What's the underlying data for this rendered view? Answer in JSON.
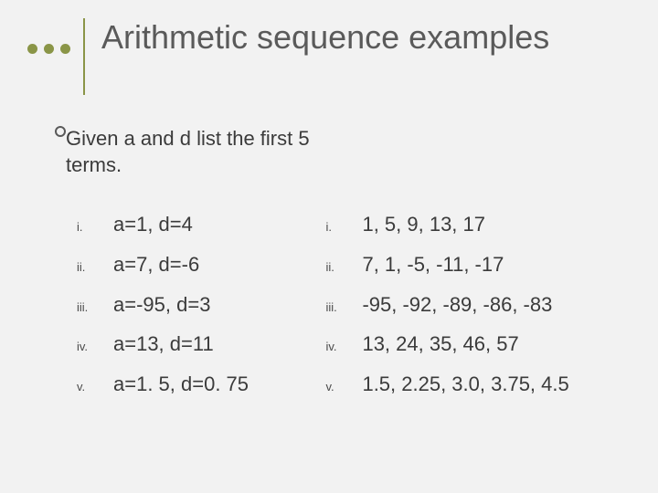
{
  "title": "Arithmetic sequence examples",
  "intro": "Given a and d list the first 5 terms.",
  "colors": {
    "accent": "#8a9547",
    "background": "#f2f2f2",
    "text": "#3b3b3b"
  },
  "left_items": [
    {
      "marker": "i.",
      "text": "a=1,   d=4"
    },
    {
      "marker": "ii.",
      "text": "a=7,   d=-6"
    },
    {
      "marker": "iii.",
      "text": "a=-95,   d=3"
    },
    {
      "marker": "iv.",
      "text": "a=13,   d=11"
    },
    {
      "marker": "v.",
      "text": "a=1. 5,   d=0. 75"
    }
  ],
  "right_items": [
    {
      "marker": "i.",
      "text": "1,  5,  9,  13,  17"
    },
    {
      "marker": "ii.",
      "text": "7,  1,  -5,  -11,  -17"
    },
    {
      "marker": "iii.",
      "text": "-95, -92, -89, -86, -83"
    },
    {
      "marker": "iv.",
      "text": "13, 24, 35, 46, 57"
    },
    {
      "marker": "v.",
      "text": "1.5, 2.25, 3.0, 3.75, 4.5"
    }
  ]
}
